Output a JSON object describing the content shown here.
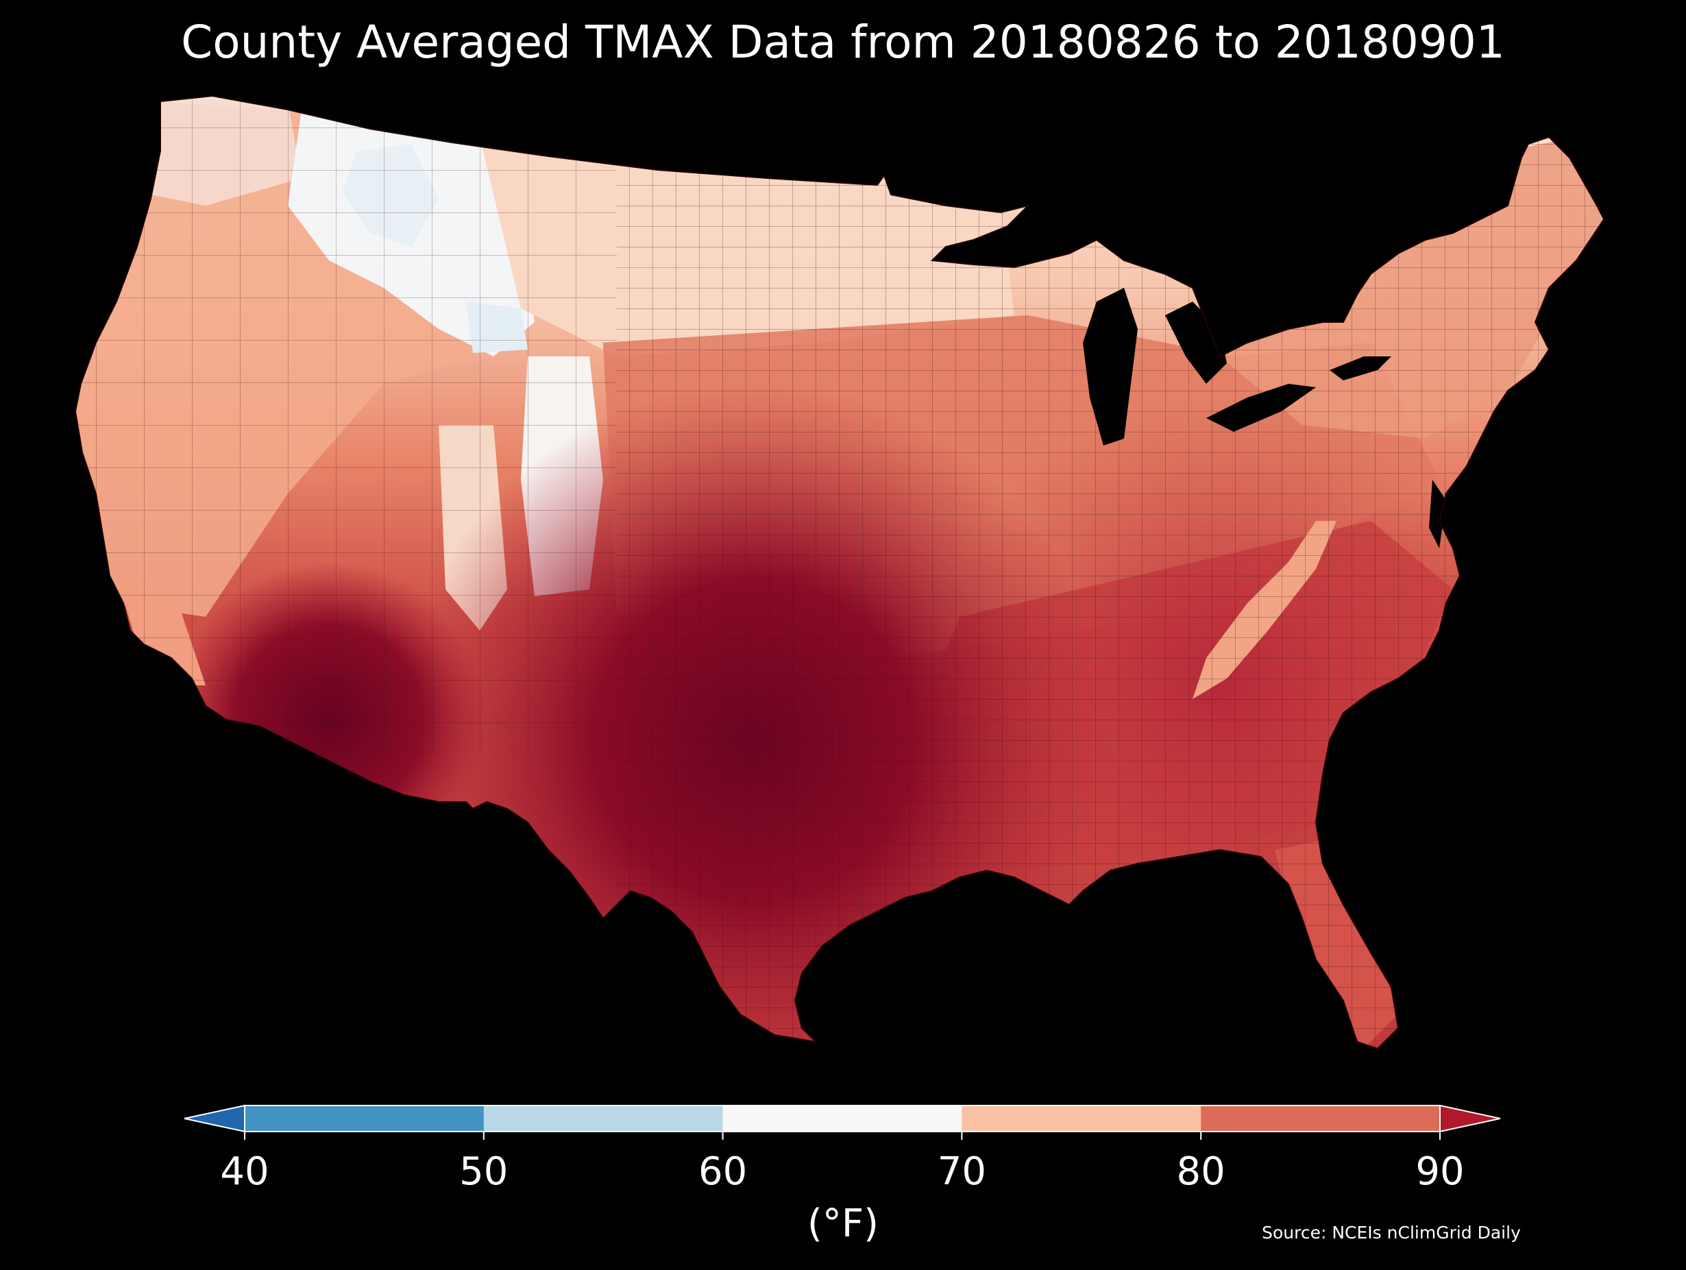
{
  "title": "County Averaged TMAX Data from 20180826 to 20180901",
  "source": "Source: NCEIs nClimGrid Daily",
  "colorbar": {
    "unit_label": "(°F)",
    "ticks": [
      "40",
      "50",
      "60",
      "70",
      "80",
      "90"
    ],
    "under_color": "#2166ac",
    "over_color": "#b2182b",
    "bins": [
      {
        "range": [
          40,
          50
        ],
        "color": "#4393c3"
      },
      {
        "range": [
          50,
          60
        ],
        "color": "#b8d8e8"
      },
      {
        "range": [
          60,
          70
        ],
        "color": "#f7f7f7"
      },
      {
        "range": [
          70,
          80
        ],
        "color": "#f8c1a3"
      },
      {
        "range": [
          80,
          90
        ],
        "color": "#dc6c58"
      }
    ]
  },
  "map": {
    "region": "Contiguous United States (county level)",
    "ocean_color": "#000000",
    "county_border_color": "#2b0a0a",
    "regional_values": [
      {
        "region": "Northern Rockies (ID, MT, WY)",
        "tmax_range": [
          60,
          70
        ],
        "color": "#f1f5f8"
      },
      {
        "region": "Pacific Northwest",
        "tmax_range": [
          60,
          75
        ],
        "color": "#f7e6dc"
      },
      {
        "region": "Northern Plains / Upper Midwest",
        "tmax_range": [
          70,
          75
        ],
        "color": "#f9d3bd"
      },
      {
        "region": "Great Basin / Central West",
        "tmax_range": [
          72,
          80
        ],
        "color": "#f3a585"
      },
      {
        "region": "Central Plains / Midwest",
        "tmax_range": [
          80,
          85
        ],
        "color": "#e07b63"
      },
      {
        "region": "Southeast / Mid-Atlantic",
        "tmax_range": [
          84,
          90
        ],
        "color": "#c8413f"
      },
      {
        "region": "Southern Plains (TX, OK)",
        "tmax_range": [
          90,
          100
        ],
        "color": "#7d0522"
      },
      {
        "region": "Desert Southwest (AZ)",
        "tmax_range": [
          90,
          105
        ],
        "color": "#6a0420"
      },
      {
        "region": "Appalachian ridges",
        "tmax_range": [
          72,
          80
        ],
        "color": "#f1a27e"
      }
    ]
  }
}
